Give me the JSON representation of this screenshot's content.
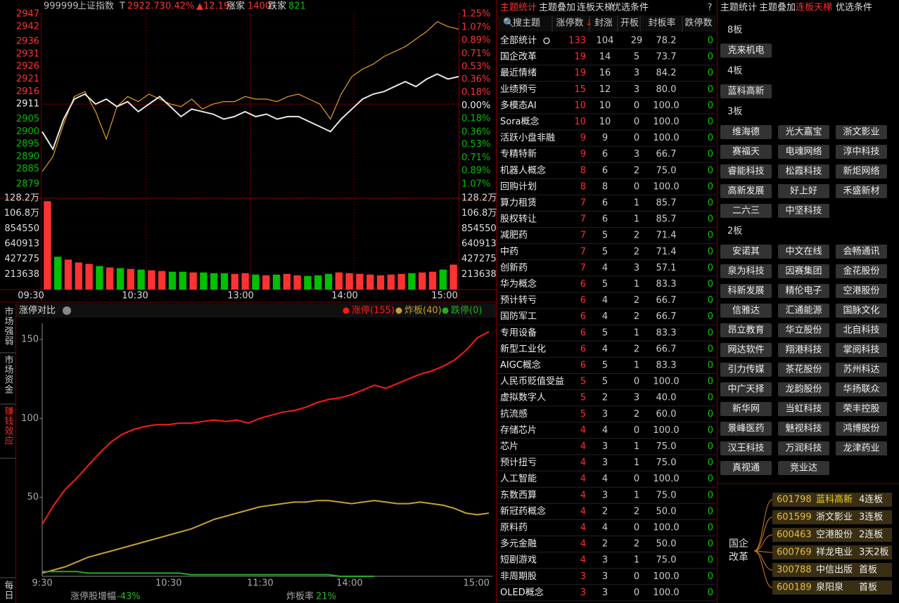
{
  "index_chart": {
    "type": "line",
    "code": "999999",
    "name": "上证指数",
    "flag": "T",
    "price": 2922.73,
    "change_pct": "0.42%",
    "change": "▲12.19",
    "up_label": "涨家",
    "up_count": 1400,
    "down_label": "跌家",
    "down_count": 821,
    "ylim": [
      2879,
      2947
    ],
    "yticks": [
      2947,
      2942,
      2936,
      2931,
      2926,
      2921,
      2916,
      2911,
      2905,
      2900,
      2895,
      2890,
      2885,
      2879
    ],
    "y2lim": [
      -1.07,
      1.25
    ],
    "y2ticks": [
      {
        "value": 1.25,
        "label": "1.25%"
      },
      {
        "value": 1.07,
        "label": "1.07%"
      },
      {
        "value": 0.89,
        "label": "0.89%"
      },
      {
        "value": 0.71,
        "label": "0.71%"
      },
      {
        "value": 0.53,
        "label": "0.53%"
      },
      {
        "value": 0.36,
        "label": "0.36%"
      },
      {
        "value": 0.18,
        "label": "0.18%"
      },
      {
        "value": 0,
        "label": "0.00%"
      },
      {
        "value": -0.18,
        "label": "0.18%"
      },
      {
        "value": -0.36,
        "label": "0.36%"
      },
      {
        "value": -0.53,
        "label": "0.53%"
      },
      {
        "value": -0.71,
        "label": "0.71%"
      },
      {
        "value": -0.89,
        "label": "0.89%"
      },
      {
        "value": -1.07,
        "label": "1.07%"
      }
    ],
    "up_color": "#ff3232",
    "down_color": "#00c000",
    "series": [
      {
        "color": "#e8e8e8",
        "values": [
          2900,
          2893,
          2905,
          2913,
          2915,
          2911,
          2913,
          2910,
          2912,
          2908,
          2911,
          2914,
          2910,
          2906,
          2909,
          2908,
          2907,
          2905,
          2906,
          2908,
          2906,
          2907,
          2905,
          2906,
          2906,
          2904,
          2902,
          2900,
          2905,
          2909,
          2913,
          2915,
          2916,
          2918,
          2920,
          2918,
          2921,
          2923,
          2921,
          2922
        ]
      },
      {
        "color": "#e0a020",
        "values": [
          2884,
          2890,
          2903,
          2914,
          2916,
          2908,
          2897,
          2910,
          2914,
          2912,
          2915,
          2913,
          2911,
          2910,
          2913,
          2909,
          2911,
          2912,
          2912,
          2914,
          2913,
          2913,
          2912,
          2914,
          2915,
          2913,
          2911,
          2905,
          2915,
          2922,
          2925,
          2927,
          2930,
          2932,
          2934,
          2937,
          2940,
          2944,
          2942,
          2941
        ]
      }
    ],
    "volume": {
      "ylim": [
        0,
        1282000
      ],
      "yticks": [
        {
          "value": 1282000,
          "label": "128.2万"
        },
        {
          "value": 1068000,
          "label": "106.8万"
        },
        854550,
        640913,
        427275,
        213638
      ],
      "values": [
        1240000,
        460000,
        420000,
        380000,
        360000,
        330000,
        310000,
        300000,
        290000,
        280000,
        270000,
        260000,
        250000,
        250000,
        240000,
        240000,
        230000,
        230000,
        220000,
        230000,
        210000,
        200000,
        210000,
        220000,
        200000,
        190000,
        200000,
        220000,
        240000,
        230000,
        220000,
        210000,
        200000,
        210000,
        220000,
        230000,
        240000,
        250000,
        280000,
        350000
      ]
    },
    "times": [
      "09:30",
      "10:30",
      "13:00",
      "14:00",
      "15:00"
    ]
  },
  "limit_chart": {
    "type": "line",
    "title": "涨停对比",
    "tabs": [
      "市场强弱",
      "市场资金",
      "赚钱效应",
      "每日"
    ],
    "ylim": [
      0,
      158
    ],
    "yticks": [
      50,
      100,
      150
    ],
    "times": [
      "9:30",
      "10:30",
      "11:30",
      "14:00",
      "15:00"
    ],
    "series": [
      {
        "name": "涨停(155)",
        "color": "#ff1a1a",
        "values": [
          33,
          45,
          55,
          62,
          70,
          78,
          85,
          90,
          93,
          95,
          96,
          96,
          97,
          97,
          98,
          99,
          98,
          99,
          97,
          100,
          102,
          104,
          105,
          107,
          110,
          112,
          113,
          115,
          118,
          121,
          119,
          122,
          125,
          128,
          130,
          133,
          137,
          143,
          151,
          155
        ]
      },
      {
        "name": "炸板(40)",
        "color": "#c8a030",
        "values": [
          2,
          4,
          6,
          9,
          12,
          14,
          16,
          18,
          20,
          22,
          24,
          26,
          28,
          30,
          33,
          36,
          38,
          40,
          42,
          44,
          45,
          46,
          47,
          47,
          48,
          48,
          47,
          46,
          47,
          48,
          47,
          46,
          46,
          47,
          46,
          45,
          43,
          40,
          39,
          40
        ]
      },
      {
        "name": "跌停(0)",
        "color": "#20b020",
        "values": [
          3,
          3,
          3,
          3,
          2,
          2,
          2,
          2,
          2,
          2,
          2,
          2,
          2,
          1,
          1,
          1,
          1,
          1,
          1,
          1,
          1,
          1,
          1,
          1,
          1,
          1,
          0,
          0,
          0,
          0,
          null,
          null,
          null,
          null,
          null,
          null,
          null,
          null,
          null,
          null
        ]
      }
    ],
    "footer": [
      {
        "label": "涨停股增幅",
        "value": "-43%"
      },
      {
        "label": "炸板率",
        "value": "21%"
      }
    ]
  },
  "theme_table": {
    "tabs": [
      "主题统计",
      "主题叠加",
      "连板天梯",
      "优选条件"
    ],
    "help": "?",
    "search": "搜主题",
    "columns": [
      "涨停数",
      "封涨",
      "开板",
      "封板率",
      "跌停数"
    ],
    "rows": [
      [
        "全部统计",
        "133",
        "104",
        "29",
        "78.2",
        "0"
      ],
      [
        "国企改革",
        "19",
        "14",
        "5",
        "73.7",
        "0"
      ],
      [
        "最近情绪",
        "19",
        "16",
        "3",
        "84.2",
        "0"
      ],
      [
        "业绩预亏",
        "15",
        "12",
        "3",
        "80.0",
        "0"
      ],
      [
        "多模态AI",
        "10",
        "10",
        "0",
        "100.0",
        "0"
      ],
      [
        "Sora概念",
        "10",
        "10",
        "0",
        "100.0",
        "0"
      ],
      [
        "活跃小盘非融",
        "9",
        "9",
        "0",
        "100.0",
        "0"
      ],
      [
        "专精特新",
        "9",
        "6",
        "3",
        "66.7",
        "0"
      ],
      [
        "机器人概念",
        "8",
        "6",
        "2",
        "75.0",
        "0"
      ],
      [
        "回购计划",
        "8",
        "8",
        "0",
        "100.0",
        "0"
      ],
      [
        "算力租赁",
        "7",
        "6",
        "1",
        "85.7",
        "0"
      ],
      [
        "股权转让",
        "7",
        "6",
        "1",
        "85.7",
        "0"
      ],
      [
        "减肥药",
        "7",
        "5",
        "2",
        "71.4",
        "0"
      ],
      [
        "中药",
        "7",
        "5",
        "2",
        "71.4",
        "0"
      ],
      [
        "创新药",
        "7",
        "4",
        "3",
        "57.1",
        "0"
      ],
      [
        "华为概念",
        "6",
        "5",
        "1",
        "83.3",
        "0"
      ],
      [
        "预计转亏",
        "6",
        "4",
        "2",
        "66.7",
        "0"
      ],
      [
        "国防军工",
        "6",
        "4",
        "2",
        "66.7",
        "0"
      ],
      [
        "专用设备",
        "6",
        "5",
        "1",
        "83.3",
        "0"
      ],
      [
        "新型工业化",
        "6",
        "4",
        "2",
        "66.7",
        "0"
      ],
      [
        "AIGC概念",
        "6",
        "5",
        "1",
        "83.3",
        "0"
      ],
      [
        "人民币贬值受益",
        "5",
        "5",
        "0",
        "100.0",
        "0"
      ],
      [
        "虚拟数字人",
        "5",
        "2",
        "3",
        "40.0",
        "0"
      ],
      [
        "抗流感",
        "5",
        "3",
        "2",
        "60.0",
        "0"
      ],
      [
        "存储芯片",
        "4",
        "4",
        "0",
        "100.0",
        "0"
      ],
      [
        "芯片",
        "4",
        "3",
        "1",
        "75.0",
        "0"
      ],
      [
        "预计扭亏",
        "4",
        "3",
        "1",
        "75.0",
        "0"
      ],
      [
        "人工智能",
        "4",
        "4",
        "0",
        "100.0",
        "0"
      ],
      [
        "东数西算",
        "4",
        "3",
        "1",
        "75.0",
        "0"
      ],
      [
        "新冠药概念",
        "4",
        "2",
        "2",
        "50.0",
        "0"
      ],
      [
        "原料药",
        "4",
        "4",
        "0",
        "100.0",
        "0"
      ],
      [
        "多元金融",
        "4",
        "2",
        "2",
        "50.0",
        "0"
      ],
      [
        "短剧游戏",
        "4",
        "3",
        "1",
        "75.0",
        "0"
      ],
      [
        "非周期股",
        "3",
        "3",
        "0",
        "100.0",
        "0"
      ],
      [
        "OLED概念",
        "3",
        "3",
        "0",
        "100.0",
        "0"
      ]
    ]
  },
  "ladder": {
    "tabs": [
      "主题统计",
      "主题叠加",
      "连板天梯",
      "优选条件"
    ],
    "groups": [
      {
        "label": "8板",
        "stocks": [
          "克来机电"
        ]
      },
      {
        "label": "4板",
        "stocks": [
          "蓝科高新"
        ]
      },
      {
        "label": "3板",
        "stocks": [
          "维海德",
          "光大嘉宝",
          "浙文影业",
          "赛福天",
          "电魂网络",
          "淳中科技",
          "睿能科技",
          "松霞科技",
          "新炬网络",
          "高新发展",
          "好上好",
          "禾盛新材",
          "二六三",
          "中坚科技"
        ]
      },
      {
        "label": "2板",
        "stocks": [
          "安诺其",
          "中文在线",
          "会畅通讯",
          "泉为科技",
          "因赛集团",
          "金花股份",
          "科新发展",
          "精伦电子",
          "空港股份",
          "信雅达",
          "汇通能源",
          "国脉文化",
          "昂立教育",
          "华立股份",
          "北自科技",
          "网达软件",
          "翔港科技",
          "掌阅科技",
          "引力传媒",
          "茶花股份",
          "苏州科达",
          "中广天择",
          "龙韵股份",
          "华扬联众",
          "新华网",
          "当虹科技",
          "荣丰控股",
          "景峰医药",
          "魅视科技",
          "鸿博股份",
          "汉王科技",
          "万润科技",
          "龙津药业",
          "真视通",
          "竞业达"
        ]
      }
    ],
    "detail": {
      "theme": "国企改革",
      "rows": [
        [
          "601798",
          "蓝科高新",
          "4连板"
        ],
        [
          "601599",
          "浙文影业",
          "3连板"
        ],
        [
          "600463",
          "空港股份",
          "2连板"
        ],
        [
          "600769",
          "祥龙电业",
          "3天2板"
        ],
        [
          "300788",
          "中信出版",
          "首板"
        ],
        [
          "600189",
          "泉阳泉",
          "首板"
        ]
      ]
    }
  }
}
